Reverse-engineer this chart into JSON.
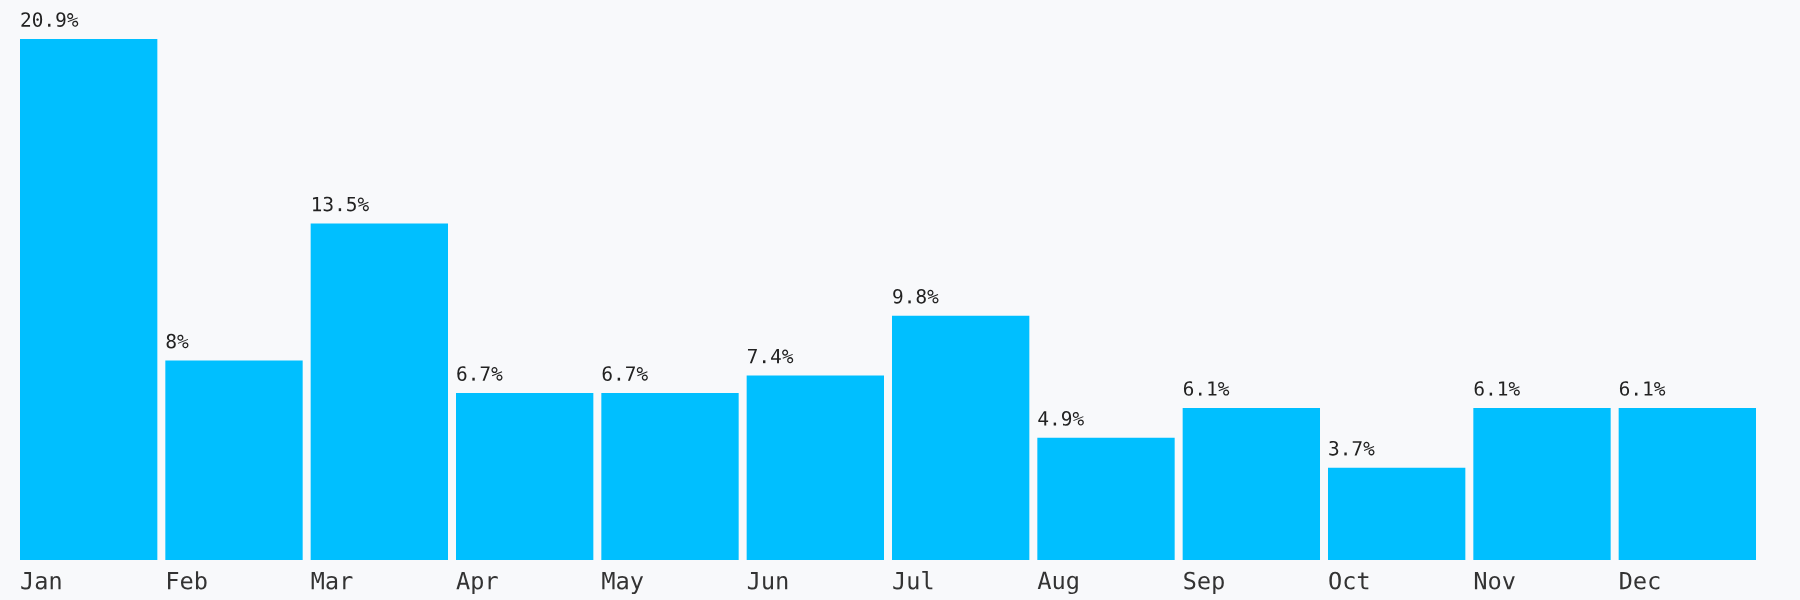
{
  "chart_data": {
    "type": "bar",
    "categories": [
      "Jan",
      "Feb",
      "Mar",
      "Apr",
      "May",
      "Jun",
      "Jul",
      "Aug",
      "Sep",
      "Oct",
      "Nov",
      "Dec"
    ],
    "values": [
      20.9,
      8,
      13.5,
      6.7,
      6.7,
      7.4,
      9.8,
      4.9,
      6.1,
      3.7,
      6.1,
      6.1
    ],
    "value_labels": [
      "20.9%",
      "8%",
      "13.5%",
      "6.7%",
      "6.7%",
      "7.4%",
      "9.8%",
      "4.9%",
      "6.1%",
      "3.7%",
      "6.1%",
      "6.1%"
    ],
    "color": "#00bfff"
  }
}
